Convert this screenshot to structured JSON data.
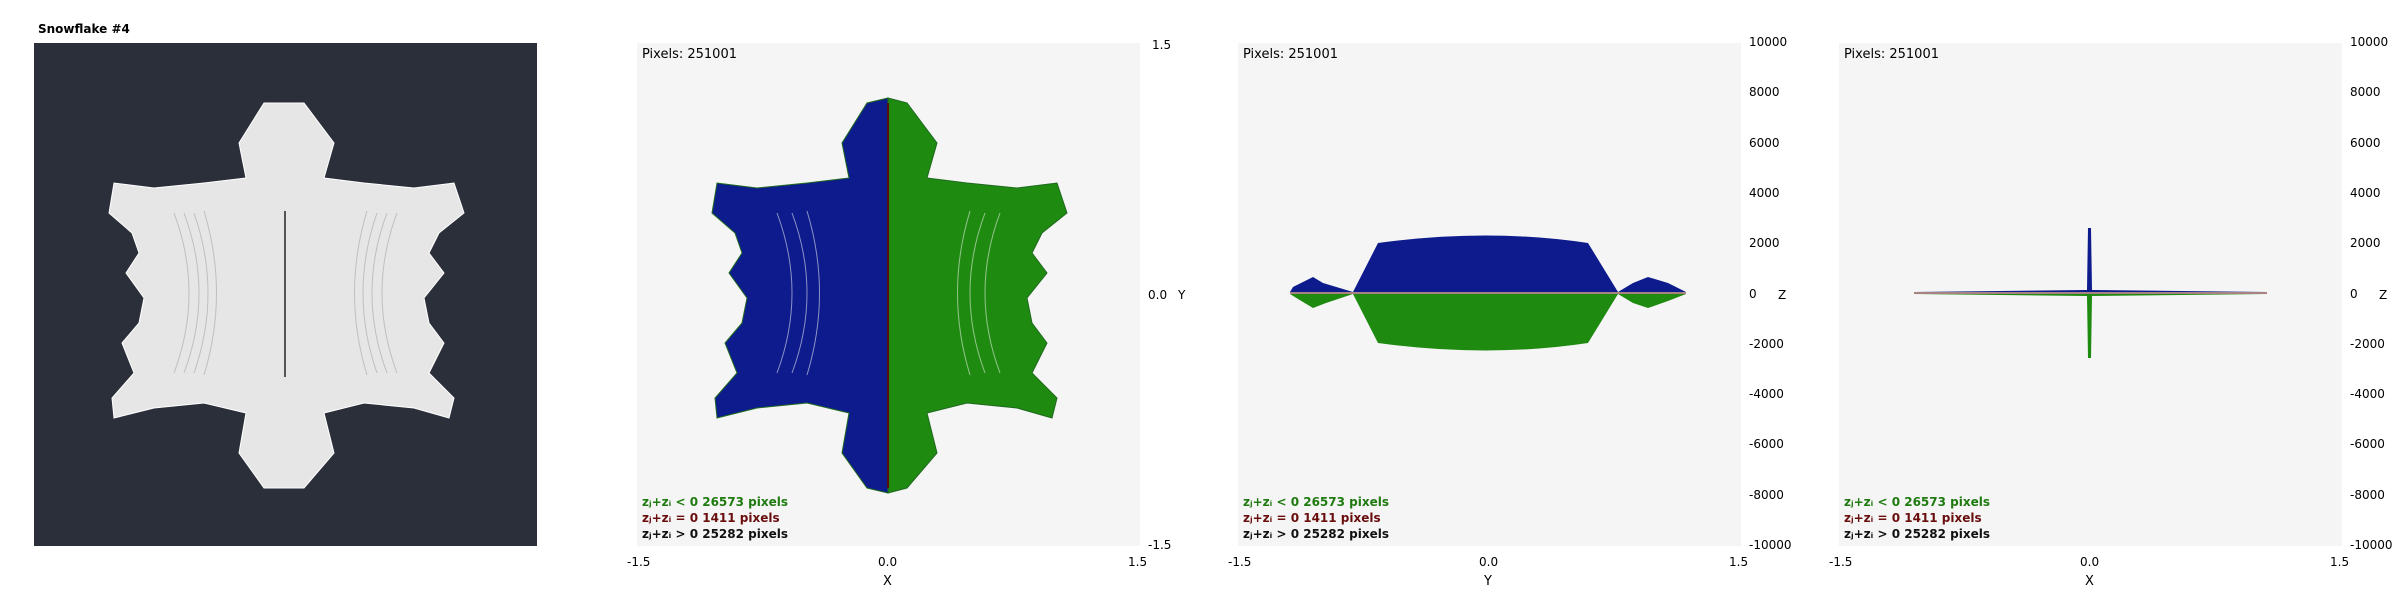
{
  "colors": {
    "background": "#ffffff",
    "snow_bg": "#2b2f3a",
    "snow_fg": "#e6e6e6",
    "plot_bg": "#f5f5f5",
    "blue": "#0d1b8c",
    "green": "#1f8a10",
    "dark_red": "#5a0d0d",
    "stats_lt": "#1f7a10",
    "stats_eq": "#6a0d0d",
    "stats_gt": "#111111"
  },
  "snowflake": {
    "title": "Snowflake #4"
  },
  "panels": [
    {
      "pixels_label": "Pixels: 251001",
      "stats": [
        "zⱼ+zᵢ < 0  26573 pixels",
        "zⱼ+zᵢ = 0  1411 pixels",
        "zⱼ+zᵢ > 0  25282 pixels"
      ]
    },
    {
      "pixels_label": "Pixels: 251001",
      "stats": [
        "zⱼ+zᵢ < 0  26573 pixels",
        "zⱼ+zᵢ = 0  1411 pixels",
        "zⱼ+zᵢ > 0  25282 pixels"
      ]
    },
    {
      "pixels_label": "Pixels: 251001",
      "stats": [
        "zⱼ+zᵢ < 0  26573 pixels",
        "zⱼ+zᵢ = 0  1411 pixels",
        "zⱼ+zᵢ > 0  25282 pixels"
      ]
    }
  ],
  "chart_data": [
    {
      "type": "scatter",
      "panel": "X-Y projection",
      "xlabel": "X",
      "ylabel": "Y",
      "xlim": [
        -1.5,
        1.5
      ],
      "ylim": [
        -1.5,
        1.5
      ],
      "xticks": [
        "-1.5",
        "0.0",
        "1.5"
      ],
      "yticks": [
        "1.5",
        "0.0",
        "-1.5"
      ],
      "series": [
        {
          "name": "zⱼ+zᵢ < 0",
          "count": 26573
        },
        {
          "name": "zⱼ+zᵢ = 0",
          "count": 1411
        },
        {
          "name": "zⱼ+zᵢ > 0",
          "count": 25282
        }
      ]
    },
    {
      "type": "scatter",
      "panel": "Y-Z projection",
      "xlabel": "Y",
      "ylabel": "Z",
      "xlim": [
        -1.5,
        1.5
      ],
      "ylim": [
        -10000,
        10000
      ],
      "xticks": [
        "-1.5",
        "0.0",
        "1.5"
      ],
      "yticks": [
        "10000",
        "8000",
        "6000",
        "4000",
        "2000",
        "0",
        "-2000",
        "-4000",
        "-6000",
        "-8000",
        "-10000"
      ],
      "z_extent": [
        -2600,
        2600
      ]
    },
    {
      "type": "scatter",
      "panel": "X-Z projection",
      "xlabel": "X",
      "ylabel": "Z",
      "xlim": [
        -1.5,
        1.5
      ],
      "ylim": [
        -10000,
        10000
      ],
      "xticks": [
        "-1.5",
        "0.0",
        "1.5"
      ],
      "yticks": [
        "10000",
        "8000",
        "6000",
        "4000",
        "2000",
        "0",
        "-2000",
        "-4000",
        "-6000",
        "-8000",
        "-10000"
      ],
      "z_extent": [
        -2700,
        2700
      ]
    }
  ]
}
